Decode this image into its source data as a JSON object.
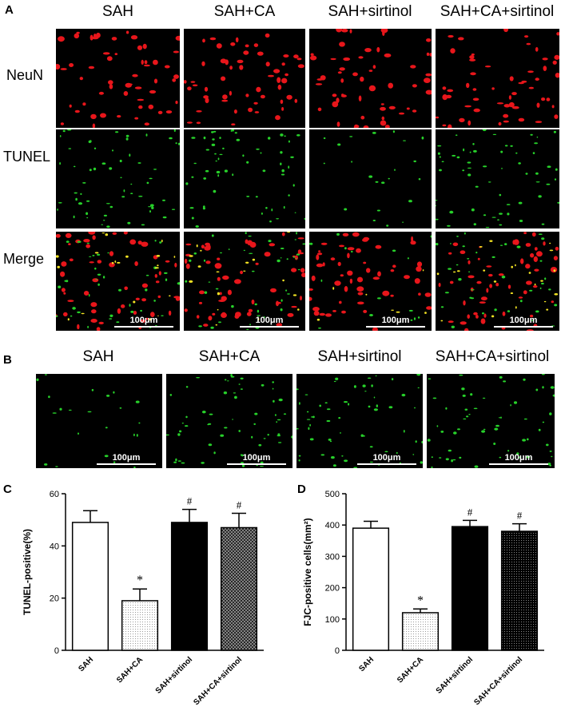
{
  "panel_a": {
    "letter": "A",
    "columns": [
      "SAH",
      "SAH+CA",
      "SAH+sirtinol",
      "SAH+CA+sirtinol"
    ],
    "rows": [
      "NeuN",
      "TUNEL",
      "Merge"
    ],
    "scale_label": "100μm"
  },
  "panel_b": {
    "letter": "B",
    "columns": [
      "SAH",
      "SAH+CA",
      "SAH+sirtinol",
      "SAH+CA+sirtinol"
    ],
    "scale_label": "100μm"
  },
  "colors": {
    "neun": "#e8161b",
    "tunel": "#27d12a",
    "merge_overlap": "#f3e323",
    "bar_black": "#000000"
  },
  "chart_data": [
    {
      "letter": "C",
      "type": "bar",
      "categories": [
        "SAH",
        "SAH+CA",
        "SAH+sirtinol",
        "SAH+CA+sirtinol"
      ],
      "values": [
        49,
        19,
        49,
        47
      ],
      "errors": [
        4.5,
        4.5,
        5,
        5.5
      ],
      "significance": [
        "",
        "*",
        "#",
        "#"
      ],
      "fills": [
        "white",
        "dots",
        "black",
        "crosshatch"
      ],
      "ylabel": "TUNEL-positive(%)",
      "ylim": [
        0,
        60
      ],
      "yticks": [
        0,
        20,
        40,
        60
      ],
      "grid": false
    },
    {
      "letter": "D",
      "type": "bar",
      "categories": [
        "SAH",
        "SAH+CA",
        "SAH+sirtinol",
        "SAH+CA+sirtinol"
      ],
      "values": [
        390,
        120,
        395,
        380
      ],
      "errors": [
        22,
        12,
        20,
        24
      ],
      "significance": [
        "",
        "*",
        "#",
        "#"
      ],
      "fills": [
        "white",
        "dots",
        "black",
        "fine-dots"
      ],
      "ylabel": "FJC-positive cells(mm²)",
      "ylim": [
        0,
        500
      ],
      "yticks": [
        0,
        100,
        200,
        300,
        400,
        500
      ],
      "grid": false
    }
  ]
}
